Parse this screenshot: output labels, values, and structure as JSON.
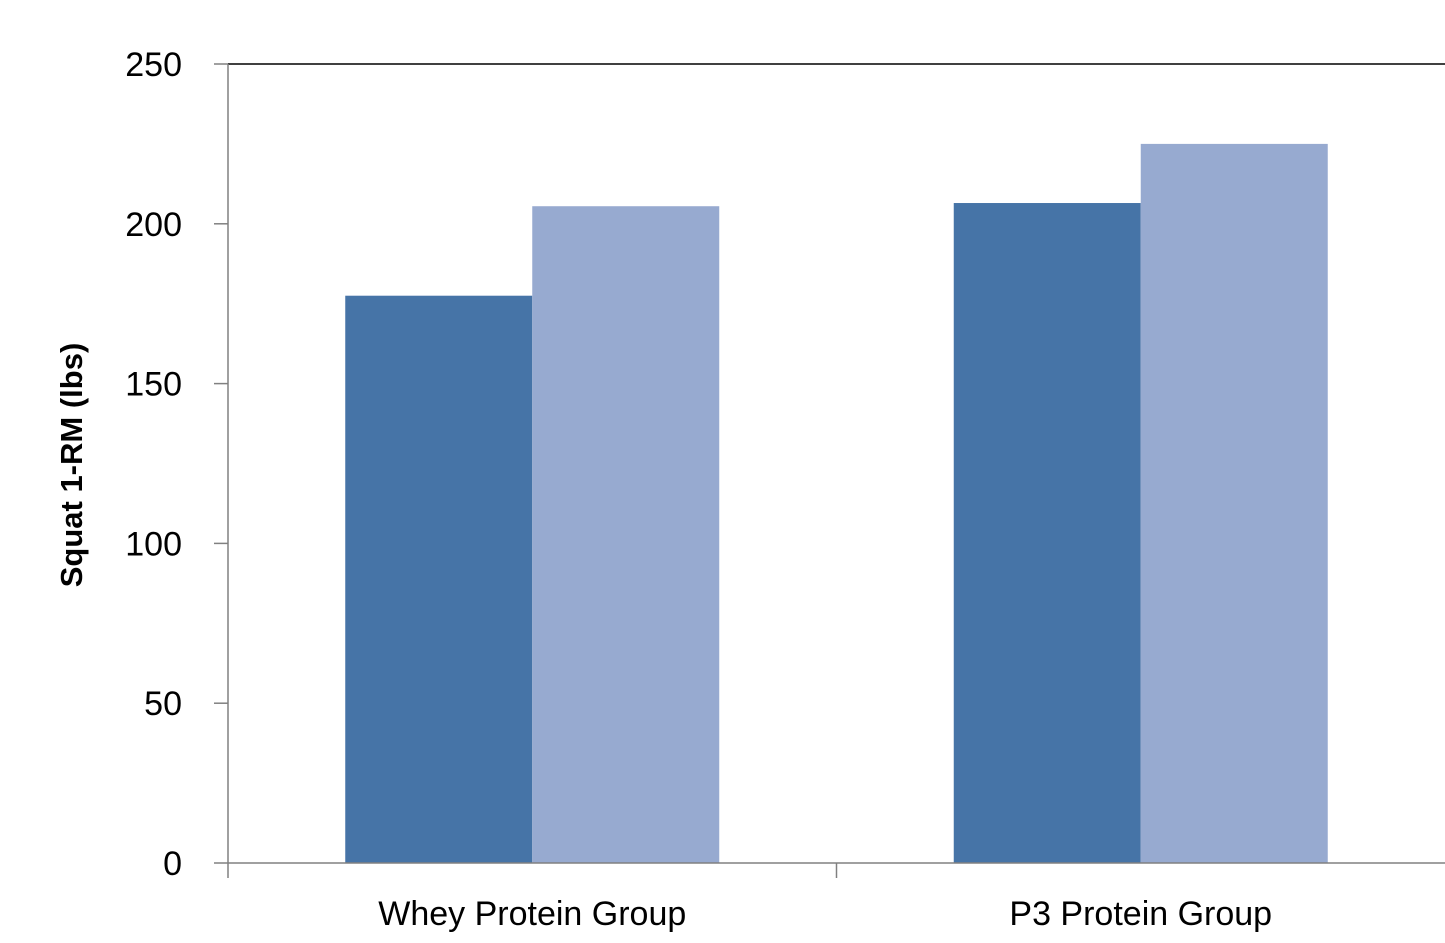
{
  "chart_data": {
    "type": "bar",
    "categories": [
      "Whey Protein Group",
      "P3 Protein Group"
    ],
    "series": [
      {
        "values": [
          177.5,
          206.5
        ],
        "color": "#4674a7"
      },
      {
        "values": [
          205.5,
          225
        ],
        "color": "#97aad0"
      }
    ],
    "ylabel": "Squat 1-RM (lbs)",
    "ylim": [
      0,
      250
    ],
    "yticks": [
      0,
      50,
      100,
      150,
      200,
      250
    ],
    "grid": false,
    "legend": "none"
  }
}
